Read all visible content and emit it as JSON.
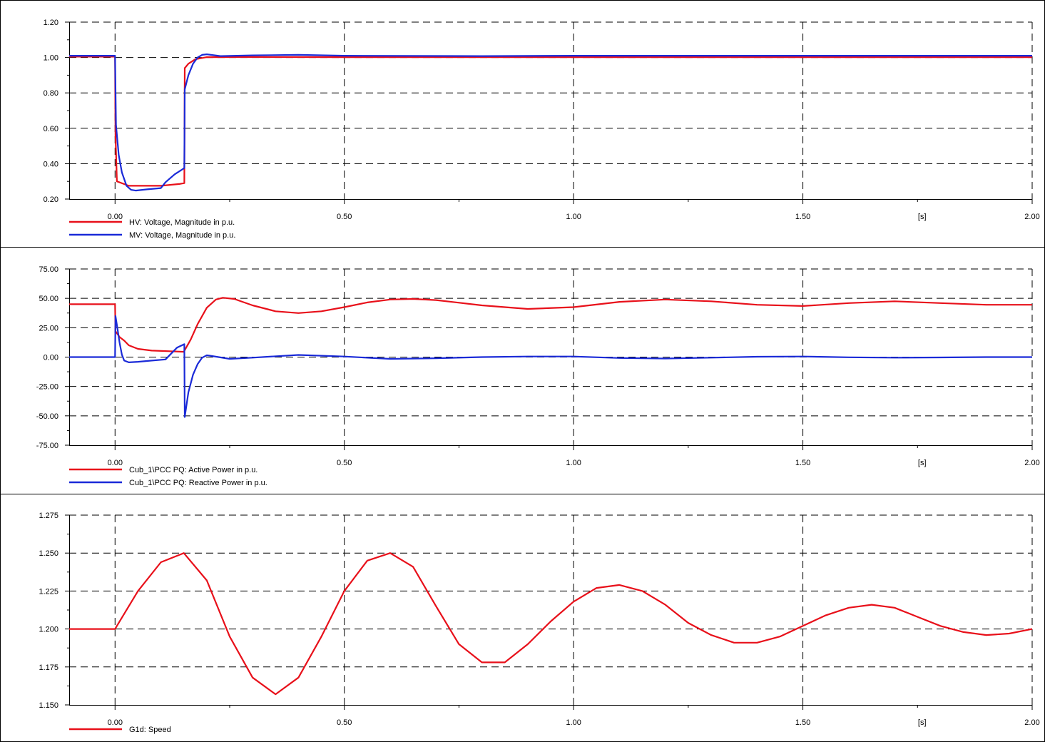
{
  "chart_data": [
    {
      "type": "line",
      "x_tick_labels": [
        "0.00",
        "0.50",
        "1.00",
        "1.50",
        "[s]",
        "2.00"
      ],
      "xlim": [
        -0.1,
        2.0
      ],
      "ylim": [
        0.2,
        1.2
      ],
      "y_tick_labels": [
        "1.20",
        "1.00",
        "0.80",
        "0.60",
        "0.40",
        "0.20"
      ],
      "grid": true,
      "legend_position": "bottom-left",
      "series": [
        {
          "name": "HV: Voltage, Magnitude in p.u.",
          "color": "#e8101a",
          "points": [
            [
              -0.1,
              1.005
            ],
            [
              0.0,
              1.005
            ],
            [
              0.001,
              0.56
            ],
            [
              0.004,
              0.3
            ],
            [
              0.03,
              0.275
            ],
            [
              0.06,
              0.275
            ],
            [
              0.1,
              0.275
            ],
            [
              0.14,
              0.285
            ],
            [
              0.151,
              0.29
            ],
            [
              0.152,
              0.94
            ],
            [
              0.16,
              0.965
            ],
            [
              0.175,
              0.99
            ],
            [
              0.2,
              1.002
            ],
            [
              0.3,
              1.003
            ],
            [
              0.5,
              1.002
            ],
            [
              1.0,
              1.002
            ],
            [
              2.0,
              1.002
            ]
          ]
        },
        {
          "name": "MV: Voltage, Magnitude in p.u.",
          "color": "#1a2ad8",
          "points": [
            [
              -0.1,
              1.01
            ],
            [
              0.0,
              1.01
            ],
            [
              0.002,
              0.62
            ],
            [
              0.008,
              0.45
            ],
            [
              0.015,
              0.35
            ],
            [
              0.025,
              0.275
            ],
            [
              0.035,
              0.252
            ],
            [
              0.045,
              0.248
            ],
            [
              0.07,
              0.255
            ],
            [
              0.1,
              0.262
            ],
            [
              0.11,
              0.295
            ],
            [
              0.13,
              0.34
            ],
            [
              0.151,
              0.375
            ],
            [
              0.152,
              0.82
            ],
            [
              0.16,
              0.9
            ],
            [
              0.17,
              0.965
            ],
            [
              0.18,
              1.0
            ],
            [
              0.19,
              1.015
            ],
            [
              0.2,
              1.018
            ],
            [
              0.23,
              1.008
            ],
            [
              0.3,
              1.012
            ],
            [
              0.4,
              1.015
            ],
            [
              0.5,
              1.01
            ],
            [
              0.8,
              1.008
            ],
            [
              1.0,
              1.01
            ],
            [
              1.5,
              1.01
            ],
            [
              2.0,
              1.01
            ]
          ]
        }
      ]
    },
    {
      "type": "line",
      "x_tick_labels": [
        "0.00",
        "0.50",
        "1.00",
        "1.50",
        "[s]",
        "2.00"
      ],
      "xlim": [
        -0.1,
        2.0
      ],
      "ylim": [
        -75,
        75
      ],
      "y_tick_labels": [
        "75.00",
        "50.00",
        "25.00",
        "0.00",
        "-25.00",
        "-50.00",
        "-75.00"
      ],
      "grid": true,
      "legend_position": "bottom-left",
      "series": [
        {
          "name": "Cub_1\\PCC PQ: Active Power in p.u.",
          "color": "#e8101a",
          "points": [
            [
              -0.1,
              45
            ],
            [
              0.0,
              45
            ],
            [
              0.001,
              22
            ],
            [
              0.01,
              17
            ],
            [
              0.02,
              14
            ],
            [
              0.03,
              10
            ],
            [
              0.05,
              7
            ],
            [
              0.08,
              5.5
            ],
            [
              0.12,
              5
            ],
            [
              0.15,
              4.5
            ],
            [
              0.165,
              15
            ],
            [
              0.18,
              28
            ],
            [
              0.2,
              42
            ],
            [
              0.22,
              49
            ],
            [
              0.235,
              50.5
            ],
            [
              0.26,
              49.5
            ],
            [
              0.3,
              44
            ],
            [
              0.35,
              39
            ],
            [
              0.4,
              37.5
            ],
            [
              0.45,
              39
            ],
            [
              0.5,
              42.5
            ],
            [
              0.55,
              46.5
            ],
            [
              0.6,
              49
            ],
            [
              0.65,
              49.5
            ],
            [
              0.7,
              48.5
            ],
            [
              0.8,
              44
            ],
            [
              0.9,
              41
            ],
            [
              1.0,
              42.5
            ],
            [
              1.1,
              47
            ],
            [
              1.2,
              49
            ],
            [
              1.3,
              47.5
            ],
            [
              1.4,
              44.5
            ],
            [
              1.5,
              43.5
            ],
            [
              1.6,
              46
            ],
            [
              1.7,
              47.5
            ],
            [
              1.8,
              46
            ],
            [
              1.9,
              44.5
            ],
            [
              2.0,
              44.5
            ]
          ]
        },
        {
          "name": "Cub_1\\PCC PQ: Reactive Power in p.u.",
          "color": "#1a2ad8",
          "points": [
            [
              -0.1,
              0
            ],
            [
              0.0,
              0
            ],
            [
              0.001,
              35
            ],
            [
              0.005,
              25
            ],
            [
              0.01,
              12
            ],
            [
              0.015,
              2
            ],
            [
              0.02,
              -3
            ],
            [
              0.03,
              -4.5
            ],
            [
              0.05,
              -4
            ],
            [
              0.08,
              -3
            ],
            [
              0.11,
              -2
            ],
            [
              0.12,
              2
            ],
            [
              0.135,
              8
            ],
            [
              0.151,
              11
            ],
            [
              0.152,
              -51
            ],
            [
              0.16,
              -30
            ],
            [
              0.17,
              -15
            ],
            [
              0.18,
              -6
            ],
            [
              0.19,
              -0.5
            ],
            [
              0.2,
              1.5
            ],
            [
              0.21,
              1
            ],
            [
              0.25,
              -1.5
            ],
            [
              0.3,
              -0.5
            ],
            [
              0.4,
              1.8
            ],
            [
              0.5,
              0.5
            ],
            [
              0.6,
              -1.5
            ],
            [
              0.7,
              -1
            ],
            [
              0.8,
              0
            ],
            [
              0.9,
              0.5
            ],
            [
              1.0,
              0.5
            ],
            [
              1.1,
              -0.8
            ],
            [
              1.2,
              -1.2
            ],
            [
              1.3,
              -0.5
            ],
            [
              1.4,
              0.3
            ],
            [
              1.5,
              0.5
            ],
            [
              1.6,
              -0.2
            ],
            [
              1.7,
              -0.5
            ],
            [
              1.8,
              -0.3
            ],
            [
              1.9,
              0
            ],
            [
              2.0,
              0
            ]
          ]
        }
      ]
    },
    {
      "type": "line",
      "x_tick_labels": [
        "0.00",
        "0.50",
        "1.00",
        "1.50",
        "[s]",
        "2.00"
      ],
      "xlim": [
        -0.1,
        2.0
      ],
      "ylim": [
        1.15,
        1.275
      ],
      "y_tick_labels": [
        "1.275",
        "1.250",
        "1.225",
        "1.200",
        "1.175",
        "1.150"
      ],
      "grid": true,
      "legend_position": "bottom-left",
      "series": [
        {
          "name": "G1d: Speed",
          "color": "#e8101a",
          "points": [
            [
              -0.1,
              1.2
            ],
            [
              0.0,
              1.2
            ],
            [
              0.05,
              1.225
            ],
            [
              0.1,
              1.244
            ],
            [
              0.15,
              1.25
            ],
            [
              0.2,
              1.232
            ],
            [
              0.25,
              1.195
            ],
            [
              0.3,
              1.168
            ],
            [
              0.35,
              1.157
            ],
            [
              0.4,
              1.168
            ],
            [
              0.45,
              1.195
            ],
            [
              0.5,
              1.225
            ],
            [
              0.55,
              1.245
            ],
            [
              0.6,
              1.25
            ],
            [
              0.65,
              1.241
            ],
            [
              0.7,
              1.215
            ],
            [
              0.75,
              1.19
            ],
            [
              0.8,
              1.178
            ],
            [
              0.85,
              1.178
            ],
            [
              0.9,
              1.19
            ],
            [
              0.95,
              1.205
            ],
            [
              1.0,
              1.218
            ],
            [
              1.05,
              1.227
            ],
            [
              1.1,
              1.229
            ],
            [
              1.15,
              1.225
            ],
            [
              1.2,
              1.216
            ],
            [
              1.25,
              1.204
            ],
            [
              1.3,
              1.196
            ],
            [
              1.35,
              1.191
            ],
            [
              1.4,
              1.191
            ],
            [
              1.45,
              1.195
            ],
            [
              1.5,
              1.202
            ],
            [
              1.55,
              1.209
            ],
            [
              1.6,
              1.214
            ],
            [
              1.65,
              1.216
            ],
            [
              1.7,
              1.214
            ],
            [
              1.75,
              1.208
            ],
            [
              1.8,
              1.202
            ],
            [
              1.85,
              1.198
            ],
            [
              1.9,
              1.196
            ],
            [
              1.95,
              1.197
            ],
            [
              2.0,
              1.2
            ]
          ]
        }
      ]
    }
  ]
}
